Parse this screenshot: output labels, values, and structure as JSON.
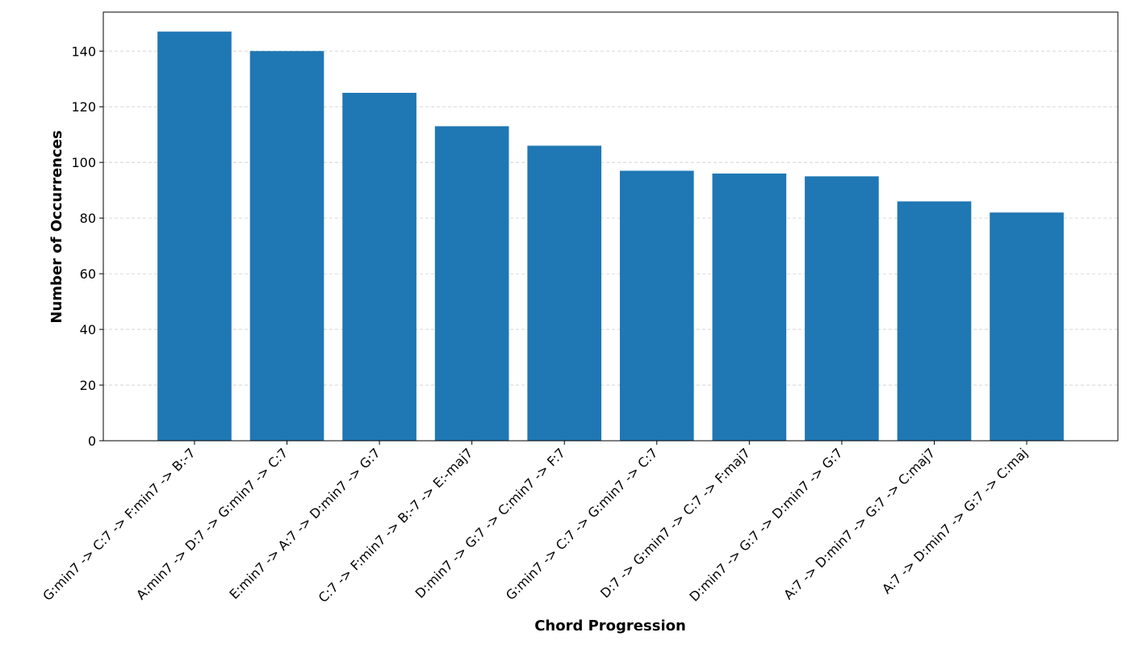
{
  "chart_data": {
    "type": "bar",
    "title": "",
    "xlabel": "Chord Progression",
    "ylabel": "Number of Occurrences",
    "categories": [
      "G:min7 -> C:7 -> F:min7 -> B:-7",
      "A:min7 -> D:7 -> G:min7 -> C:7",
      "E:min7 -> A:7 -> D:min7 -> G:7",
      "C:7 -> F:min7 -> B:-7 -> E:-maj7",
      "D:min7 -> G:7 -> C:min7 -> F:7",
      "G:min7 -> C:7 -> G:min7 -> C:7",
      "D:7 -> G:min7 -> C:7 -> F:maj7",
      "D:min7 -> G:7 -> D:min7 -> G:7",
      "A:7 -> D:min7 -> G:7 -> C:maj7",
      "A:7 -> D:min7 -> G:7 -> C:maj"
    ],
    "values": [
      147,
      140,
      125,
      113,
      106,
      97,
      96,
      95,
      86,
      82
    ],
    "ylim": [
      0,
      154
    ],
    "yticks": [
      0,
      20,
      40,
      60,
      80,
      100,
      120,
      140
    ],
    "grid": true,
    "bar_color": "#1f77b4",
    "grid_color": "#cccccc"
  }
}
